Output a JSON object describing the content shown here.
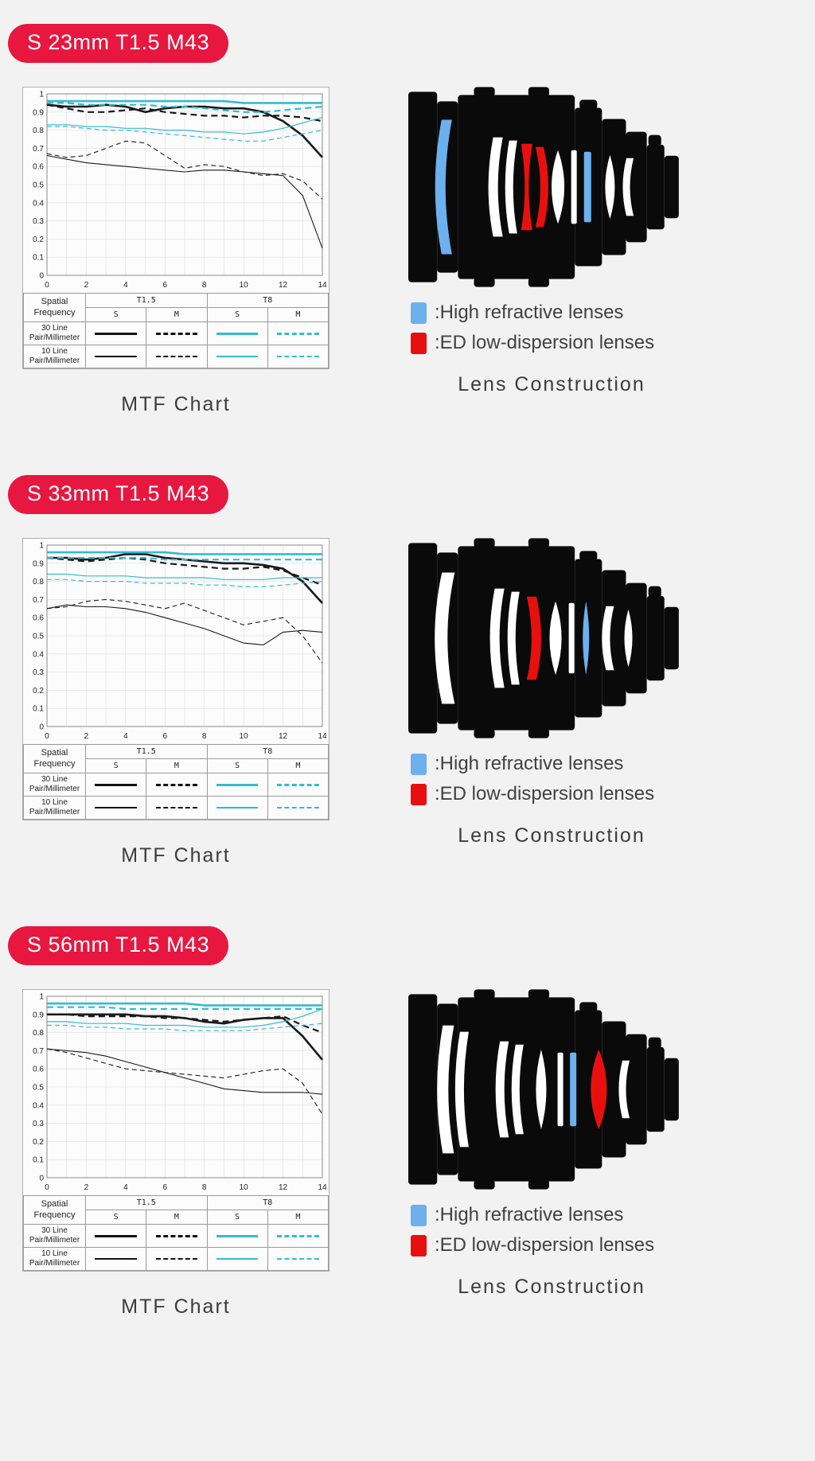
{
  "colors": {
    "badge": "#e7173f",
    "cyan": "#35bad2",
    "black_line": "#1a1a1a",
    "lens_blue": "#6cb0ee",
    "lens_red": "#e8100e",
    "background": "#f2f2f2"
  },
  "captions": {
    "mtf": "MTF Chart",
    "construction": "Lens Construction"
  },
  "legend": {
    "high_refractive": ":High refractive lenses",
    "ed": ":ED low-dispersion lenses"
  },
  "mtf_table": {
    "spatial": "Spatial Frequency",
    "t15": "T1.5",
    "t8": "T8",
    "s": "S",
    "m": "M",
    "row30": "30 Line Pair/Millimeter",
    "row10": "10 Line Pair/Millimeter"
  },
  "sections": [
    {
      "badge": "S 23mm T1.5 M43",
      "construction": {
        "elements": [
          {
            "type": "meniscus",
            "x": 54,
            "hh": 84,
            "t": 13,
            "b": 16,
            "dir": -1,
            "color": "blue"
          },
          {
            "type": "meniscus",
            "x": 118,
            "hh": 62,
            "t": 12,
            "b": 12,
            "dir": -1,
            "color": "white"
          },
          {
            "type": "meniscus",
            "x": 137,
            "hh": 58,
            "t": 10,
            "b": 10,
            "dir": -1,
            "color": "white"
          },
          {
            "type": "biconcave",
            "x": 154,
            "hh": 54,
            "t": 14,
            "b": 9,
            "color": "red"
          },
          {
            "type": "meniscus",
            "x": 170,
            "hh": 50,
            "t": 10,
            "b": 12,
            "dir": 1,
            "color": "red"
          },
          {
            "type": "biconvex",
            "x": 193,
            "hh": 46,
            "b": 16,
            "color": "white"
          },
          {
            "type": "slab",
            "x": 213,
            "hh": 46,
            "t": 7,
            "color": "white"
          },
          {
            "type": "slab",
            "x": 230,
            "hh": 44,
            "t": 9,
            "color": "blue"
          },
          {
            "type": "biconvex",
            "x": 258,
            "hh": 40,
            "b": 12,
            "color": "white"
          },
          {
            "type": "meniscus",
            "x": 283,
            "hh": 36,
            "t": 9,
            "b": 9,
            "dir": -1,
            "color": "white"
          }
        ]
      }
    },
    {
      "badge": "S 33mm T1.5 M43",
      "construction": {
        "elements": [
          {
            "type": "meniscus",
            "x": 56,
            "hh": 82,
            "t": 16,
            "b": 18,
            "dir": -1,
            "color": "white"
          },
          {
            "type": "meniscus",
            "x": 120,
            "hh": 62,
            "t": 12,
            "b": 12,
            "dir": -1,
            "color": "white"
          },
          {
            "type": "meniscus",
            "x": 140,
            "hh": 58,
            "t": 10,
            "b": 10,
            "dir": -1,
            "color": "white"
          },
          {
            "type": "meniscus",
            "x": 160,
            "hh": 52,
            "t": 12,
            "b": 12,
            "dir": 1,
            "color": "red"
          },
          {
            "type": "biconvex",
            "x": 190,
            "hh": 46,
            "b": 15,
            "color": "white"
          },
          {
            "type": "slab",
            "x": 210,
            "hh": 44,
            "t": 7,
            "color": "white"
          },
          {
            "type": "biconvex",
            "x": 228,
            "hh": 46,
            "b": 8,
            "color": "blue"
          },
          {
            "type": "meniscus",
            "x": 258,
            "hh": 40,
            "t": 10,
            "b": 10,
            "dir": -1,
            "color": "white"
          },
          {
            "type": "biconvex",
            "x": 281,
            "hh": 36,
            "b": 10,
            "color": "white"
          }
        ]
      }
    },
    {
      "badge": "S 56mm T1.5 M43",
      "construction": {
        "elements": [
          {
            "type": "meniscus",
            "x": 56,
            "hh": 80,
            "t": 14,
            "b": 14,
            "dir": -1,
            "color": "white"
          },
          {
            "type": "meniscus",
            "x": 76,
            "hh": 72,
            "t": 11,
            "b": 12,
            "dir": -1,
            "color": "white"
          },
          {
            "type": "meniscus",
            "x": 126,
            "hh": 60,
            "t": 11,
            "b": 11,
            "dir": -1,
            "color": "white"
          },
          {
            "type": "meniscus",
            "x": 145,
            "hh": 56,
            "t": 10,
            "b": 10,
            "dir": -1,
            "color": "white"
          },
          {
            "type": "biconvex",
            "x": 172,
            "hh": 50,
            "b": 13,
            "color": "white"
          },
          {
            "type": "slab",
            "x": 196,
            "hh": 46,
            "t": 7,
            "color": "white"
          },
          {
            "type": "slab",
            "x": 212,
            "hh": 46,
            "t": 8,
            "color": "blue"
          },
          {
            "type": "biconvex",
            "x": 244,
            "hh": 50,
            "b": 20,
            "color": "red"
          },
          {
            "type": "meniscus",
            "x": 278,
            "hh": 36,
            "t": 9,
            "b": 9,
            "dir": -1,
            "color": "white"
          }
        ]
      }
    }
  ],
  "chart_data": [
    {
      "type": "line",
      "title": "S 23mm T1.5 M43",
      "x": [
        0,
        1,
        2,
        3,
        4,
        5,
        6,
        7,
        8,
        9,
        10,
        11,
        12,
        13,
        14
      ],
      "xlim": [
        0,
        14
      ],
      "ylim": [
        0,
        1
      ],
      "x_ticks": [
        0,
        2,
        4,
        6,
        8,
        10,
        12,
        14
      ],
      "y_tick_step": 0.1,
      "grid": true,
      "series": [
        {
          "name": "T1.5 S 30 Line Pair/Millimeter",
          "color": "#1a1a1a",
          "dashed": false,
          "width": 2.6,
          "values": [
            0.94,
            0.93,
            0.93,
            0.94,
            0.93,
            0.9,
            0.92,
            0.93,
            0.93,
            0.92,
            0.92,
            0.9,
            0.85,
            0.77,
            0.65
          ]
        },
        {
          "name": "T1.5 M 30 Line Pair/Millimeter",
          "color": "#1a1a1a",
          "dashed": true,
          "width": 2.2,
          "values": [
            0.94,
            0.92,
            0.9,
            0.9,
            0.91,
            0.92,
            0.9,
            0.89,
            0.88,
            0.88,
            0.87,
            0.88,
            0.88,
            0.87,
            0.85
          ]
        },
        {
          "name": "T1.5 S 10 Line Pair/Millimeter",
          "color": "#1a1a1a",
          "dashed": false,
          "width": 1.1,
          "values": [
            0.66,
            0.64,
            0.62,
            0.61,
            0.6,
            0.59,
            0.58,
            0.57,
            0.58,
            0.58,
            0.57,
            0.56,
            0.55,
            0.44,
            0.15
          ]
        },
        {
          "name": "T1.5 M 10 Line Pair/Millimeter",
          "color": "#1a1a1a",
          "dashed": true,
          "width": 1.1,
          "values": [
            0.67,
            0.65,
            0.66,
            0.7,
            0.74,
            0.73,
            0.66,
            0.59,
            0.61,
            0.6,
            0.57,
            0.55,
            0.56,
            0.52,
            0.42
          ]
        },
        {
          "name": "T8 S 30 Line Pair/Millimeter",
          "color": "#35bad2",
          "dashed": false,
          "width": 2.6,
          "values": [
            0.96,
            0.96,
            0.96,
            0.96,
            0.96,
            0.96,
            0.96,
            0.96,
            0.96,
            0.96,
            0.95,
            0.95,
            0.95,
            0.95,
            0.95
          ]
        },
        {
          "name": "T8 M 30 Line Pair/Millimeter",
          "color": "#35bad2",
          "dashed": true,
          "width": 2.2,
          "values": [
            0.95,
            0.95,
            0.94,
            0.94,
            0.94,
            0.94,
            0.93,
            0.93,
            0.92,
            0.91,
            0.9,
            0.9,
            0.91,
            0.92,
            0.93
          ]
        },
        {
          "name": "T8 S 10 Line Pair/Millimeter",
          "color": "#35bad2",
          "dashed": false,
          "width": 1.2,
          "values": [
            0.83,
            0.83,
            0.82,
            0.82,
            0.81,
            0.81,
            0.8,
            0.8,
            0.79,
            0.79,
            0.78,
            0.79,
            0.81,
            0.84,
            0.87
          ]
        },
        {
          "name": "T8 M 10 Line Pair/Millimeter",
          "color": "#35bad2",
          "dashed": true,
          "width": 1.2,
          "values": [
            0.82,
            0.82,
            0.81,
            0.8,
            0.8,
            0.79,
            0.78,
            0.77,
            0.76,
            0.75,
            0.74,
            0.74,
            0.76,
            0.78,
            0.8
          ]
        }
      ]
    },
    {
      "type": "line",
      "title": "S 33mm T1.5 M43",
      "x": [
        0,
        1,
        2,
        3,
        4,
        5,
        6,
        7,
        8,
        9,
        10,
        11,
        12,
        13,
        14
      ],
      "xlim": [
        0,
        14
      ],
      "ylim": [
        0,
        1
      ],
      "x_ticks": [
        0,
        2,
        4,
        6,
        8,
        10,
        12,
        14
      ],
      "y_tick_step": 0.1,
      "grid": true,
      "series": [
        {
          "name": "T1.5 S 30 Line Pair/Millimeter",
          "color": "#1a1a1a",
          "dashed": false,
          "width": 2.6,
          "values": [
            0.93,
            0.93,
            0.92,
            0.93,
            0.95,
            0.95,
            0.93,
            0.92,
            0.91,
            0.9,
            0.9,
            0.89,
            0.87,
            0.8,
            0.68
          ]
        },
        {
          "name": "T1.5 M 30 Line Pair/Millimeter",
          "color": "#1a1a1a",
          "dashed": true,
          "width": 2.2,
          "values": [
            0.93,
            0.92,
            0.91,
            0.92,
            0.93,
            0.92,
            0.9,
            0.89,
            0.88,
            0.87,
            0.87,
            0.88,
            0.86,
            0.82,
            0.78
          ]
        },
        {
          "name": "T1.5 S 10 Line Pair/Millimeter",
          "color": "#1a1a1a",
          "dashed": false,
          "width": 1.1,
          "values": [
            0.65,
            0.67,
            0.66,
            0.66,
            0.65,
            0.63,
            0.6,
            0.57,
            0.54,
            0.5,
            0.46,
            0.45,
            0.52,
            0.53,
            0.52
          ]
        },
        {
          "name": "T1.5 M 10 Line Pair/Millimeter",
          "color": "#1a1a1a",
          "dashed": true,
          "width": 1.1,
          "values": [
            0.65,
            0.66,
            0.69,
            0.7,
            0.69,
            0.67,
            0.65,
            0.68,
            0.64,
            0.6,
            0.56,
            0.58,
            0.6,
            0.5,
            0.35
          ]
        },
        {
          "name": "T8 S 30 Line Pair/Millimeter",
          "color": "#35bad2",
          "dashed": false,
          "width": 2.6,
          "values": [
            0.96,
            0.96,
            0.96,
            0.96,
            0.96,
            0.96,
            0.96,
            0.95,
            0.95,
            0.95,
            0.95,
            0.95,
            0.95,
            0.95,
            0.95
          ]
        },
        {
          "name": "T8 M 30 Line Pair/Millimeter",
          "color": "#35bad2",
          "dashed": true,
          "width": 2.2,
          "values": [
            0.93,
            0.93,
            0.93,
            0.93,
            0.93,
            0.93,
            0.92,
            0.92,
            0.92,
            0.92,
            0.92,
            0.92,
            0.92,
            0.92,
            0.92
          ]
        },
        {
          "name": "T8 S 10 Line Pair/Millimeter",
          "color": "#35bad2",
          "dashed": false,
          "width": 1.2,
          "values": [
            0.84,
            0.84,
            0.83,
            0.83,
            0.83,
            0.82,
            0.82,
            0.82,
            0.82,
            0.81,
            0.81,
            0.81,
            0.82,
            0.82,
            0.82
          ]
        },
        {
          "name": "T8 M 10 Line Pair/Millimeter",
          "color": "#35bad2",
          "dashed": true,
          "width": 1.2,
          "values": [
            0.81,
            0.81,
            0.8,
            0.8,
            0.8,
            0.79,
            0.79,
            0.79,
            0.78,
            0.78,
            0.77,
            0.77,
            0.78,
            0.79,
            0.8
          ]
        }
      ]
    },
    {
      "type": "line",
      "title": "S 56mm T1.5 M43",
      "x": [
        0,
        1,
        2,
        3,
        4,
        5,
        6,
        7,
        8,
        9,
        10,
        11,
        12,
        13,
        14
      ],
      "xlim": [
        0,
        14
      ],
      "ylim": [
        0,
        1
      ],
      "x_ticks": [
        0,
        2,
        4,
        6,
        8,
        10,
        12,
        14
      ],
      "y_tick_step": 0.1,
      "grid": true,
      "series": [
        {
          "name": "T1.5 S 30 Line Pair/Millimeter",
          "color": "#1a1a1a",
          "dashed": false,
          "width": 2.6,
          "values": [
            0.9,
            0.9,
            0.9,
            0.9,
            0.9,
            0.89,
            0.89,
            0.88,
            0.86,
            0.85,
            0.87,
            0.88,
            0.88,
            0.78,
            0.65
          ]
        },
        {
          "name": "T1.5 M 30 Line Pair/Millimeter",
          "color": "#1a1a1a",
          "dashed": true,
          "width": 2.2,
          "values": [
            0.9,
            0.9,
            0.89,
            0.89,
            0.89,
            0.89,
            0.88,
            0.88,
            0.87,
            0.86,
            0.87,
            0.88,
            0.89,
            0.84,
            0.8
          ]
        },
        {
          "name": "T1.5 S 10 Line Pair/Millimeter",
          "color": "#1a1a1a",
          "dashed": false,
          "width": 1.1,
          "values": [
            0.71,
            0.7,
            0.69,
            0.67,
            0.64,
            0.61,
            0.58,
            0.55,
            0.52,
            0.49,
            0.48,
            0.47,
            0.47,
            0.47,
            0.46
          ]
        },
        {
          "name": "T1.5 M 10 Line Pair/Millimeter",
          "color": "#1a1a1a",
          "dashed": true,
          "width": 1.1,
          "values": [
            0.71,
            0.69,
            0.66,
            0.63,
            0.6,
            0.59,
            0.58,
            0.57,
            0.56,
            0.55,
            0.57,
            0.59,
            0.6,
            0.52,
            0.35
          ]
        },
        {
          "name": "T8 S 30 Line Pair/Millimeter",
          "color": "#35bad2",
          "dashed": false,
          "width": 2.6,
          "values": [
            0.96,
            0.96,
            0.96,
            0.96,
            0.96,
            0.96,
            0.96,
            0.96,
            0.95,
            0.95,
            0.95,
            0.95,
            0.95,
            0.95,
            0.95
          ]
        },
        {
          "name": "T8 M 30 Line Pair/Millimeter",
          "color": "#35bad2",
          "dashed": true,
          "width": 2.2,
          "values": [
            0.94,
            0.94,
            0.94,
            0.94,
            0.93,
            0.93,
            0.93,
            0.93,
            0.93,
            0.93,
            0.93,
            0.93,
            0.93,
            0.93,
            0.93
          ]
        },
        {
          "name": "T8 S 10 Line Pair/Millimeter",
          "color": "#35bad2",
          "dashed": false,
          "width": 1.2,
          "values": [
            0.86,
            0.86,
            0.85,
            0.85,
            0.85,
            0.84,
            0.84,
            0.84,
            0.83,
            0.83,
            0.83,
            0.84,
            0.86,
            0.89,
            0.93
          ]
        },
        {
          "name": "T8 M 10 Line Pair/Millimeter",
          "color": "#35bad2",
          "dashed": true,
          "width": 1.2,
          "values": [
            0.84,
            0.84,
            0.83,
            0.83,
            0.82,
            0.82,
            0.82,
            0.81,
            0.81,
            0.81,
            0.81,
            0.82,
            0.83,
            0.84,
            0.85
          ]
        }
      ]
    }
  ]
}
